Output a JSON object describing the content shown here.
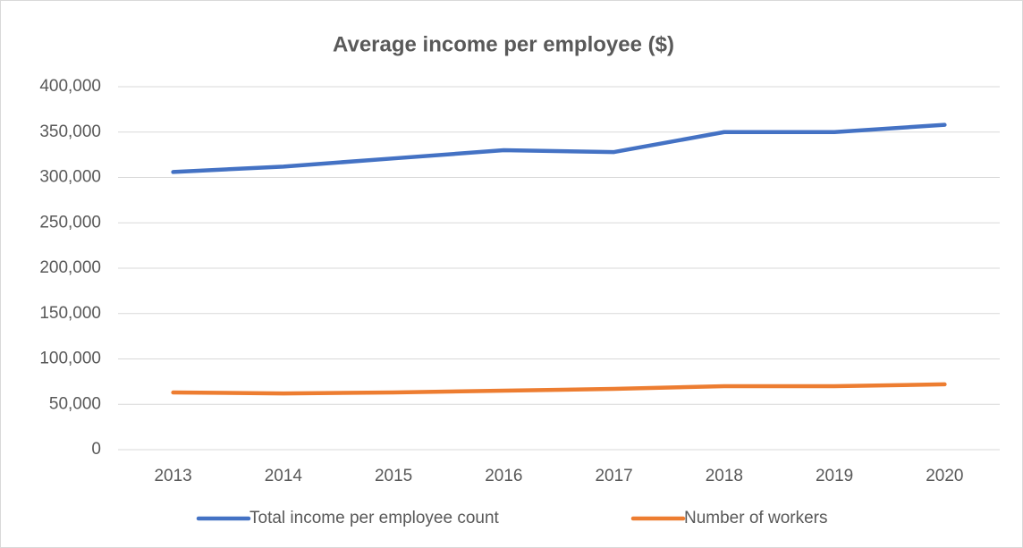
{
  "chart_data": {
    "type": "line",
    "title": "Average income per employee ($)",
    "categories": [
      "2013",
      "2014",
      "2015",
      "2016",
      "2017",
      "2018",
      "2019",
      "2020"
    ],
    "series": [
      {
        "name": "Total income per employee count",
        "color": "#4472c4",
        "values": [
          306000,
          312000,
          321000,
          330000,
          328000,
          350000,
          350000,
          358000
        ]
      },
      {
        "name": "Number of workers",
        "color": "#ed7d31",
        "values": [
          63000,
          62000,
          63000,
          65000,
          67000,
          70000,
          70000,
          72000
        ]
      }
    ],
    "ylim": [
      0,
      400000
    ],
    "yticks": [
      0,
      {
        "value": 50000,
        "label": "50,000"
      },
      {
        "value": 100000,
        "label": "100,000"
      },
      {
        "value": 150000,
        "label": "150,000"
      },
      {
        "value": 200000,
        "label": "200,000"
      },
      {
        "value": 250000,
        "label": "250,000"
      },
      {
        "value": 300000,
        "label": "300,000"
      },
      {
        "value": 350000,
        "label": "350,000"
      },
      {
        "value": 400000,
        "label": "400,000"
      }
    ],
    "grid": true,
    "legend": "bottom"
  }
}
